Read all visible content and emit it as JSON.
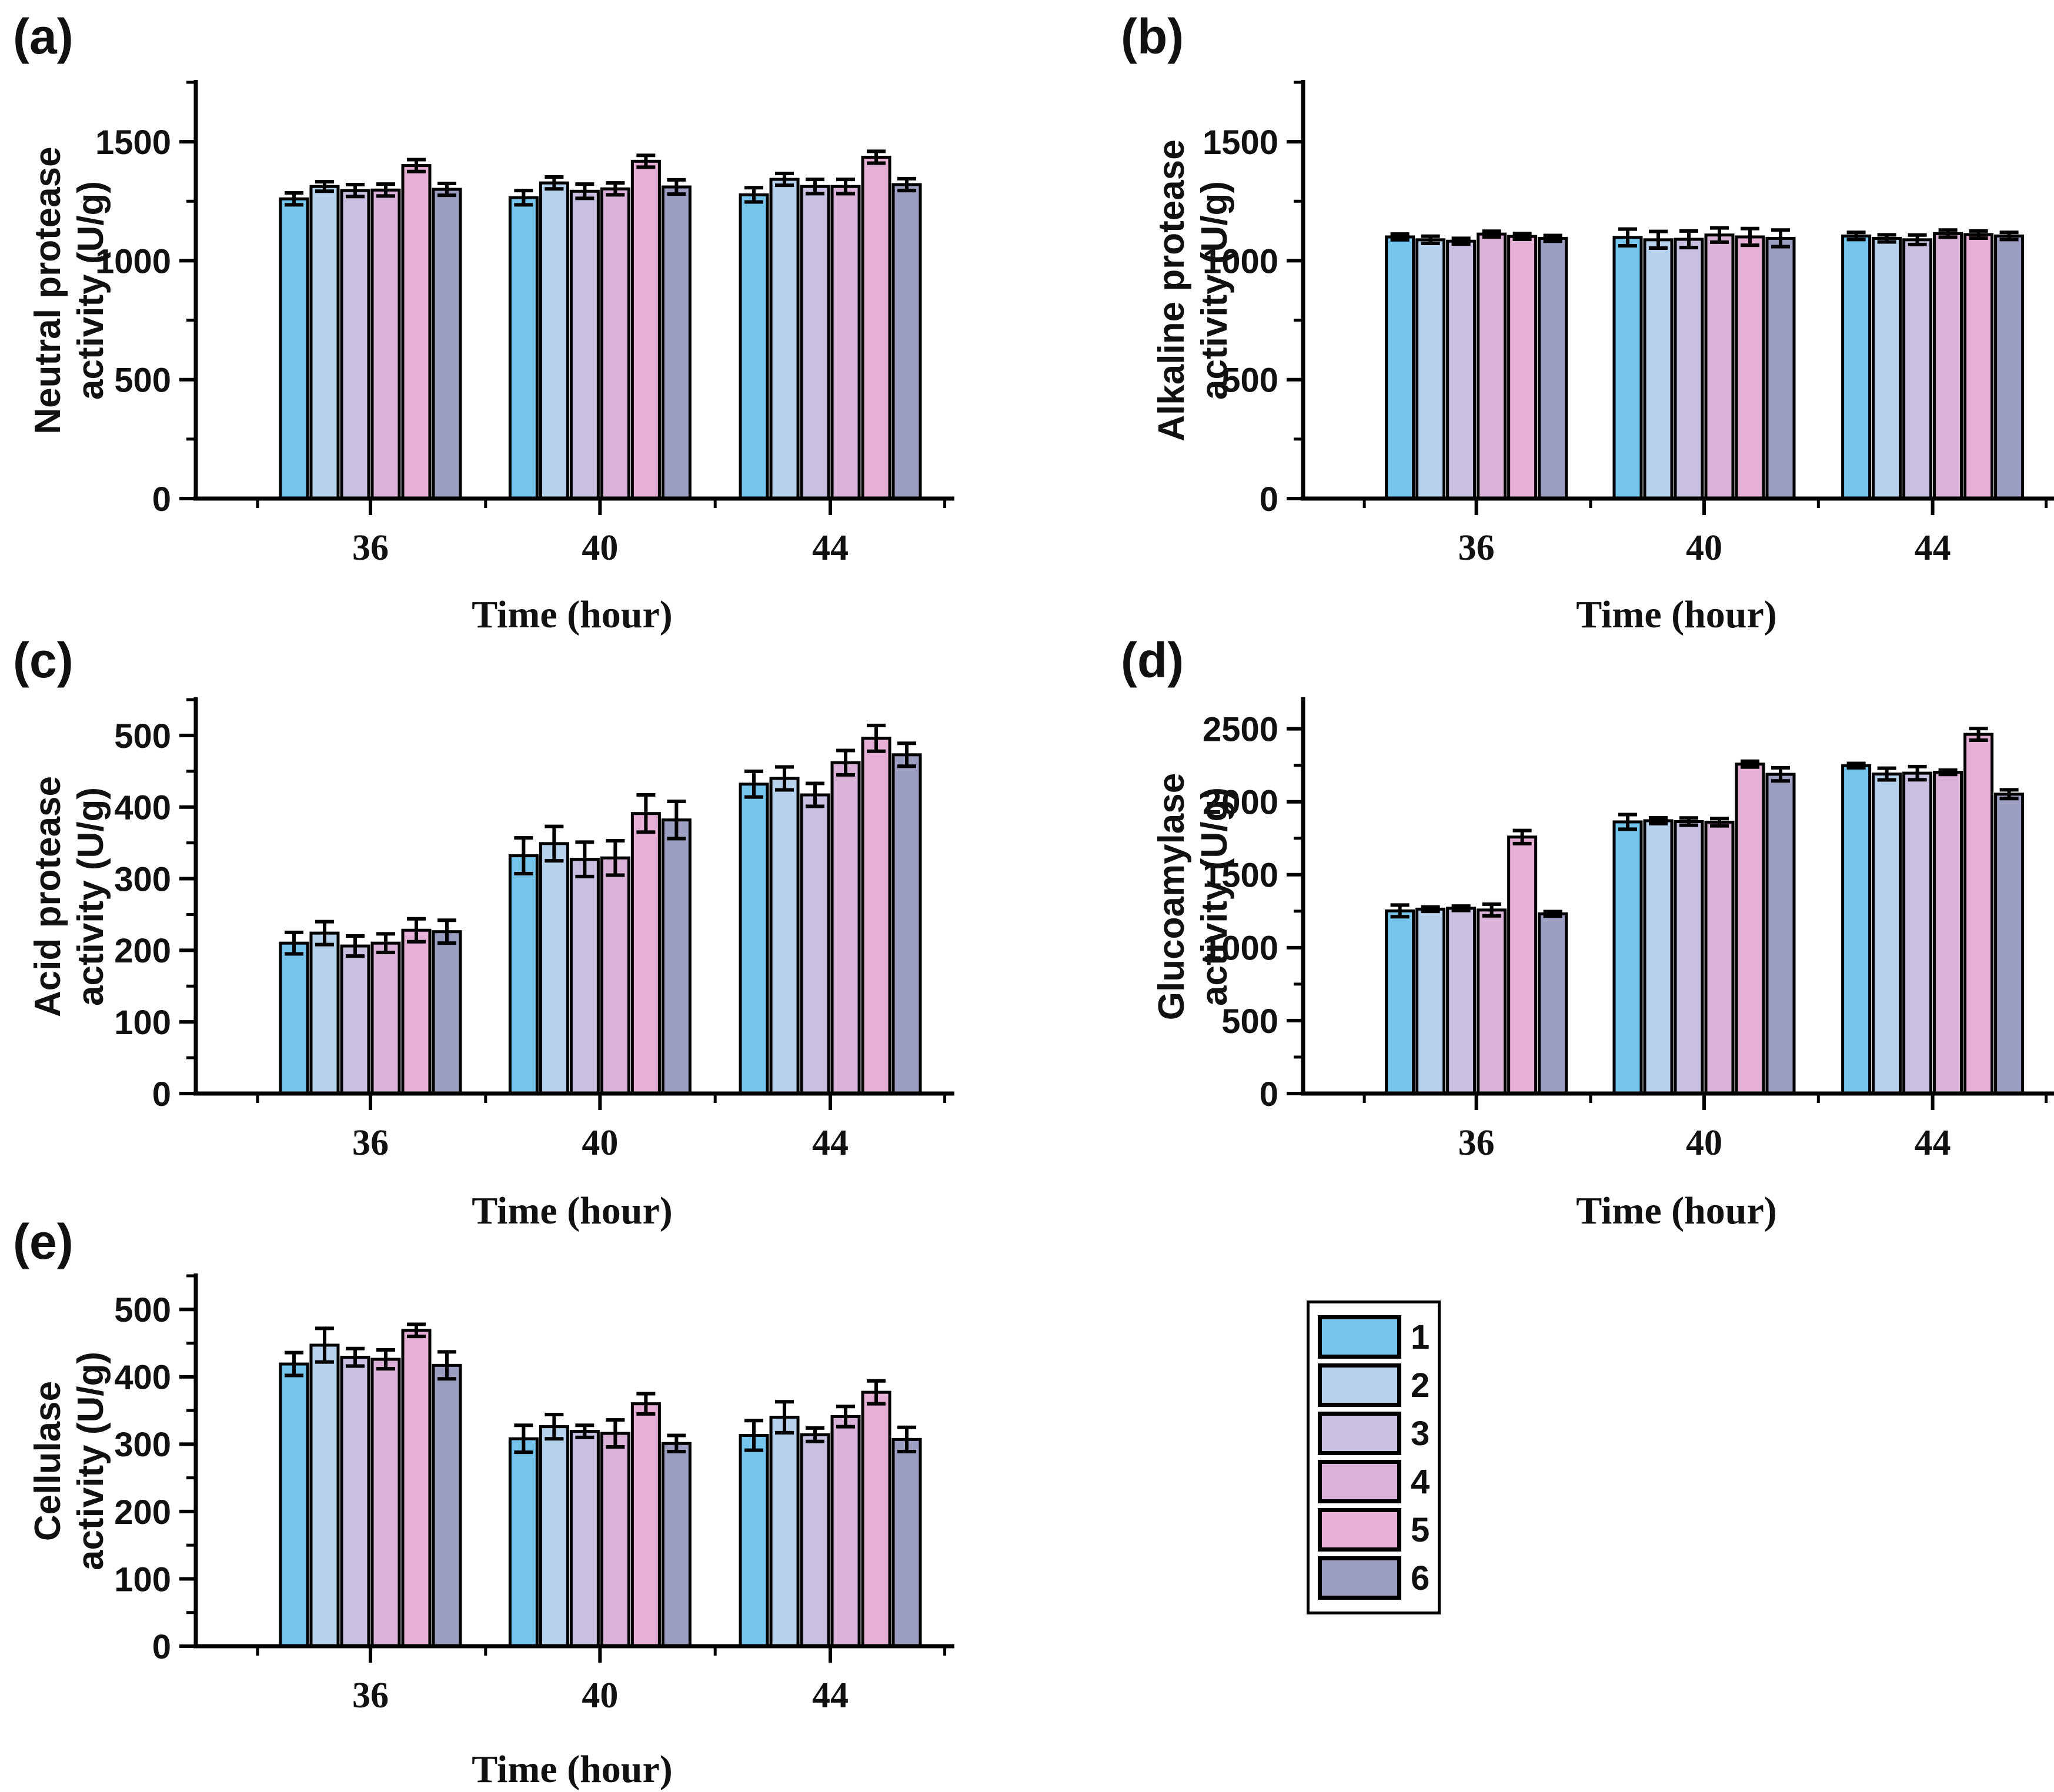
{
  "figure": {
    "background": "#ffffff",
    "xlabel": "Time (hour)"
  },
  "legend": {
    "position": "bottom-right",
    "entries": [
      {
        "label": "1",
        "color": "#76C5EC"
      },
      {
        "label": "2",
        "color": "#B6D2EC"
      },
      {
        "label": "3",
        "color": "#C9BFE1"
      },
      {
        "label": "4",
        "color": "#DAB2D8"
      },
      {
        "label": "5",
        "color": "#E6AFD6"
      },
      {
        "label": "6",
        "color": "#9C9FC1"
      }
    ]
  },
  "chart_data": [
    {
      "type": "bar",
      "letter": "(a)",
      "ylabel_line1": "Neutral protease",
      "ylabel_line2": "activity (U/g)",
      "xlabel": "Time (hour)",
      "categories": [
        "36",
        "40",
        "44"
      ],
      "ylim": [
        0,
        1750
      ],
      "grid": false,
      "minor_step": 250,
      "yticks": [
        {
          "v": 0,
          "label": "0"
        },
        {
          "v": 500,
          "label": "500"
        },
        {
          "v": 1000,
          "label": "1000"
        },
        {
          "v": 1500,
          "label": "1500"
        }
      ],
      "series": [
        {
          "name": "1",
          "values": [
            1260,
            1265,
            1277
          ],
          "errors": [
            25,
            30,
            30
          ]
        },
        {
          "name": "2",
          "values": [
            1312,
            1327,
            1342
          ],
          "errors": [
            20,
            25,
            25
          ]
        },
        {
          "name": "3",
          "values": [
            1295,
            1292,
            1312
          ],
          "errors": [
            25,
            30,
            30
          ]
        },
        {
          "name": "4",
          "values": [
            1297,
            1302,
            1312
          ],
          "errors": [
            25,
            25,
            30
          ]
        },
        {
          "name": "5",
          "values": [
            1400,
            1418,
            1435
          ],
          "errors": [
            25,
            25,
            25
          ]
        },
        {
          "name": "6",
          "values": [
            1300,
            1310,
            1320
          ],
          "errors": [
            25,
            30,
            25
          ]
        }
      ]
    },
    {
      "type": "bar",
      "letter": "(b)",
      "ylabel_line1": "Alkaline protease",
      "ylabel_line2": "activity (U/g)",
      "xlabel": "Time (hour)",
      "categories": [
        "36",
        "40",
        "44"
      ],
      "ylim": [
        0,
        1750
      ],
      "grid": false,
      "minor_step": 250,
      "yticks": [
        {
          "v": 0,
          "label": "0"
        },
        {
          "v": 500,
          "label": "500"
        },
        {
          "v": 1000,
          "label": "1000"
        },
        {
          "v": 1500,
          "label": "1500"
        }
      ],
      "series": [
        {
          "name": "1",
          "values": [
            1100,
            1098,
            1104
          ],
          "errors": [
            12,
            35,
            15
          ]
        },
        {
          "name": "2",
          "values": [
            1088,
            1088,
            1094
          ],
          "errors": [
            15,
            35,
            15
          ]
        },
        {
          "name": "3",
          "values": [
            1082,
            1090,
            1088
          ],
          "errors": [
            12,
            35,
            20
          ]
        },
        {
          "name": "4",
          "values": [
            1112,
            1108,
            1114
          ],
          "errors": [
            12,
            30,
            15
          ]
        },
        {
          "name": "5",
          "values": [
            1102,
            1100,
            1110
          ],
          "errors": [
            12,
            35,
            15
          ]
        },
        {
          "name": "6",
          "values": [
            1094,
            1094,
            1104
          ],
          "errors": [
            12,
            35,
            15
          ]
        }
      ]
    },
    {
      "type": "bar",
      "letter": "(c)",
      "ylabel_line1": "Acid protease",
      "ylabel_line2": "activity (U/g)",
      "xlabel": "Time (hour)",
      "categories": [
        "36",
        "40",
        "44"
      ],
      "ylim": [
        0,
        550
      ],
      "grid": false,
      "minor_step": 50,
      "yticks": [
        {
          "v": 0,
          "label": "0"
        },
        {
          "v": 100,
          "label": "100"
        },
        {
          "v": 200,
          "label": "200"
        },
        {
          "v": 300,
          "label": "300"
        },
        {
          "v": 400,
          "label": "400"
        },
        {
          "v": 500,
          "label": "500"
        }
      ],
      "series": [
        {
          "name": "1",
          "values": [
            210,
            332,
            432
          ],
          "errors": [
            15,
            25,
            18
          ]
        },
        {
          "name": "2",
          "values": [
            224,
            349,
            440
          ],
          "errors": [
            16,
            24,
            16
          ]
        },
        {
          "name": "3",
          "values": [
            206,
            327,
            417
          ],
          "errors": [
            14,
            24,
            16
          ]
        },
        {
          "name": "4",
          "values": [
            210,
            329,
            462
          ],
          "errors": [
            13,
            24,
            17
          ]
        },
        {
          "name": "5",
          "values": [
            228,
            391,
            496
          ],
          "errors": [
            16,
            26,
            18
          ]
        },
        {
          "name": "6",
          "values": [
            226,
            382,
            473
          ],
          "errors": [
            16,
            26,
            16
          ]
        }
      ]
    },
    {
      "type": "bar",
      "letter": "(d)",
      "ylabel_line1": "Glucoamylase",
      "ylabel_line2": "activity (U/g)",
      "xlabel": "Time (hour)",
      "categories": [
        "36",
        "40",
        "44"
      ],
      "ylim": [
        0,
        2700
      ],
      "grid": false,
      "minor_step": 250,
      "yticks": [
        {
          "v": 0,
          "label": "0"
        },
        {
          "v": 500,
          "label": "500"
        },
        {
          "v": 1000,
          "label": "1000"
        },
        {
          "v": 1500,
          "label": "1500"
        },
        {
          "v": 2000,
          "label": "2000"
        },
        {
          "v": 2500,
          "label": "2500"
        }
      ],
      "series": [
        {
          "name": "1",
          "values": [
            1252,
            1862,
            2248
          ],
          "errors": [
            40,
            50,
            15
          ]
        },
        {
          "name": "2",
          "values": [
            1264,
            1870,
            2190
          ],
          "errors": [
            15,
            20,
            40
          ]
        },
        {
          "name": "3",
          "values": [
            1270,
            1864,
            2196
          ],
          "errors": [
            15,
            25,
            45
          ]
        },
        {
          "name": "4",
          "values": [
            1258,
            1860,
            2202
          ],
          "errors": [
            40,
            25,
            15
          ]
        },
        {
          "name": "5",
          "values": [
            1758,
            2258,
            2462
          ],
          "errors": [
            45,
            20,
            40
          ]
        },
        {
          "name": "6",
          "values": [
            1232,
            2188,
            2052
          ],
          "errors": [
            15,
            45,
            30
          ]
        }
      ]
    },
    {
      "type": "bar",
      "letter": "(e)",
      "ylabel_line1": "Cellulase",
      "ylabel_line2": "activity (U/g)",
      "xlabel": "Time (hour)",
      "categories": [
        "36",
        "40",
        "44"
      ],
      "ylim": [
        0,
        550
      ],
      "grid": false,
      "minor_step": 50,
      "yticks": [
        {
          "v": 0,
          "label": "0"
        },
        {
          "v": 100,
          "label": "100"
        },
        {
          "v": 200,
          "label": "200"
        },
        {
          "v": 300,
          "label": "300"
        },
        {
          "v": 400,
          "label": "400"
        },
        {
          "v": 500,
          "label": "500"
        }
      ],
      "series": [
        {
          "name": "1",
          "values": [
            419,
            308,
            313
          ],
          "errors": [
            17,
            20,
            22
          ]
        },
        {
          "name": "2",
          "values": [
            447,
            326,
            340
          ],
          "errors": [
            25,
            18,
            23
          ]
        },
        {
          "name": "3",
          "values": [
            429,
            319,
            314
          ],
          "errors": [
            13,
            9,
            10
          ]
        },
        {
          "name": "4",
          "values": [
            426,
            316,
            341
          ],
          "errors": [
            14,
            20,
            15
          ]
        },
        {
          "name": "5",
          "values": [
            469,
            360,
            377
          ],
          "errors": [
            9,
            15,
            17
          ]
        },
        {
          "name": "6",
          "values": [
            417,
            301,
            307
          ],
          "errors": [
            20,
            12,
            18
          ]
        }
      ]
    }
  ]
}
